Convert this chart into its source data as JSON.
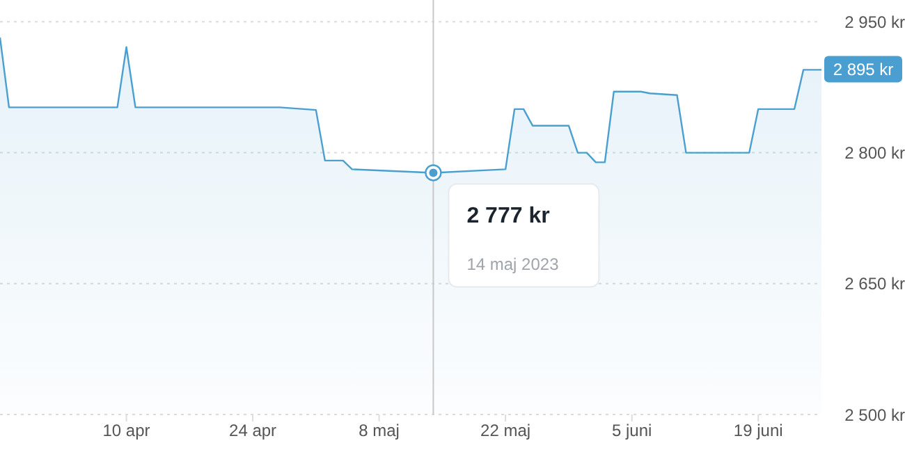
{
  "chart_data": {
    "type": "area",
    "x": [
      "2023-03-27",
      "2023-03-28",
      "2023-04-09",
      "2023-04-10",
      "2023-04-11",
      "2023-04-27",
      "2023-05-01",
      "2023-05-02",
      "2023-05-04",
      "2023-05-05",
      "2023-05-14",
      "2023-05-22",
      "2023-05-23",
      "2023-05-24",
      "2023-05-25",
      "2023-05-29",
      "2023-05-30",
      "2023-05-31",
      "2023-06-01",
      "2023-06-02",
      "2023-06-03",
      "2023-06-06",
      "2023-06-07",
      "2023-06-10",
      "2023-06-11",
      "2023-06-18",
      "2023-06-19",
      "2023-06-23",
      "2023-06-24",
      "2023-06-26"
    ],
    "series": [
      {
        "color": "#4a9fd0",
        "values": [
          2932,
          2852,
          2852,
          2921,
          2852,
          2852,
          2849,
          2791,
          2791,
          2781,
          2777,
          2781,
          2850,
          2850,
          2831,
          2831,
          2800,
          2800,
          2789,
          2789,
          2870,
          2870,
          2868,
          2866,
          2800,
          2800,
          2850,
          2850,
          2895,
          2895
        ]
      }
    ],
    "xlim": [
      "2023-03-27",
      "2023-06-26"
    ],
    "xticks": [
      {
        "value": "2023-04-10",
        "label": "10 apr"
      },
      {
        "value": "2023-04-24",
        "label": "24 apr"
      },
      {
        "value": "2023-05-08",
        "label": "8 maj"
      },
      {
        "value": "2023-05-22",
        "label": "22 maj"
      },
      {
        "value": "2023-06-05",
        "label": "5 juni"
      },
      {
        "value": "2023-06-19",
        "label": "19 juni"
      }
    ],
    "ylim": [
      2500,
      2975
    ],
    "yticks": [
      {
        "value": 2500,
        "label": "2 500 kr"
      },
      {
        "value": 2650,
        "label": "2 650 kr"
      },
      {
        "value": 2800,
        "label": "2 800 kr"
      },
      {
        "value": 2950,
        "label": "2 950 kr"
      }
    ],
    "grid": "y",
    "marker": "none",
    "line_style": "solid",
    "ref_lines": [
      {
        "axis": "x",
        "value": "2023-05-14",
        "color": "#c8c8c8"
      }
    ],
    "annotations": [
      {
        "text": "2 777 kr",
        "x": "2023-05-14",
        "y": 2777
      },
      "14 maj 2023",
      {
        "text": "2 895 kr",
        "x": "2023-06-26",
        "y": 2895
      }
    ]
  }
}
